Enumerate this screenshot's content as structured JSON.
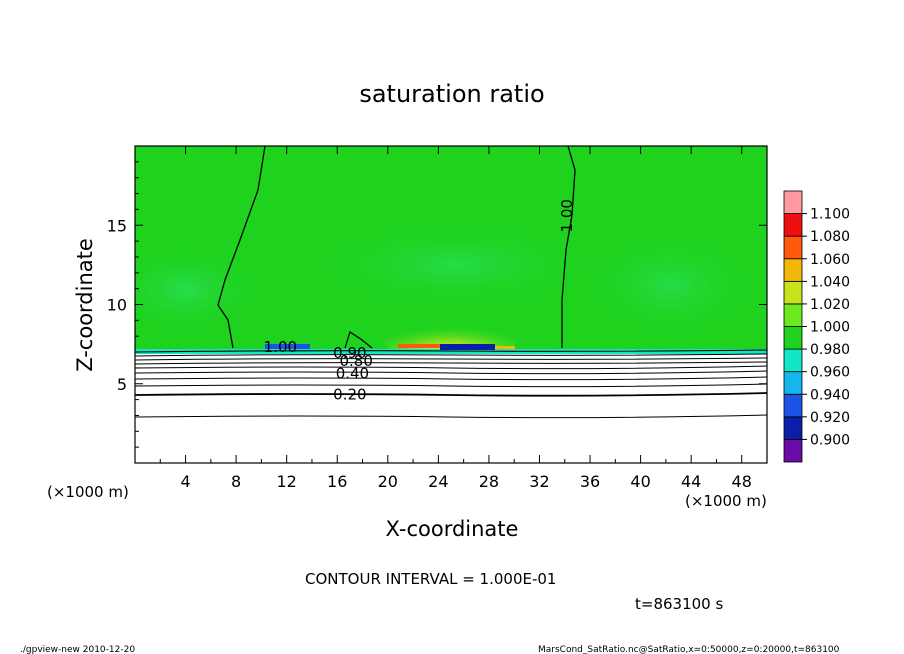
{
  "chart_data": {
    "type": "heatmap",
    "title": "saturation ratio",
    "xlabel": "X-coordinate",
    "ylabel": "Z-coordinate",
    "x_unit": "(×1000 m)",
    "y_unit": "(×1000 m)",
    "xlim": [
      0,
      50
    ],
    "ylim": [
      0,
      20
    ],
    "x_ticks": [
      4,
      8,
      12,
      16,
      20,
      24,
      28,
      32,
      36,
      40,
      44,
      48
    ],
    "x_tick_labels": [
      "4",
      "8",
      "12",
      "16",
      "20",
      "24",
      "28",
      "32",
      "36",
      "40",
      "44",
      "48"
    ],
    "y_ticks": [
      5,
      10,
      15
    ],
    "y_tick_labels": [
      "5",
      "10",
      "15"
    ],
    "colorbar": {
      "levels": [
        0.9,
        0.92,
        0.94,
        0.96,
        0.98,
        1.0,
        1.02,
        1.04,
        1.06,
        1.08,
        1.1
      ],
      "labels": [
        "0.900",
        "0.920",
        "0.940",
        "0.960",
        "0.980",
        "1.000",
        "1.020",
        "1.040",
        "1.060",
        "1.080",
        "1.100"
      ],
      "colors": [
        "#6a0aa8",
        "#0b1ea8",
        "#1c54e6",
        "#15b6ee",
        "#13e6c6",
        "#1ed21e",
        "#6cea1e",
        "#c6e31c",
        "#f2b90a",
        "#ff5a0e",
        "#ee1010",
        "#ff9aa0"
      ]
    },
    "contour_labels": [
      {
        "text": "1.00",
        "x": 34.2,
        "y": 15.6,
        "rotate": -90
      },
      {
        "text": "1.00",
        "x": 11.5,
        "y": 7.3
      },
      {
        "text": "0.90",
        "x": 17.0,
        "y": 6.9
      },
      {
        "text": "0.80",
        "x": 17.5,
        "y": 6.4
      },
      {
        "text": "0.40",
        "x": 17.2,
        "y": 5.6
      },
      {
        "text": "0.20",
        "x": 17.0,
        "y": 4.3
      }
    ],
    "contour_interval": "CONTOUR INTERVAL = 1.000E-01",
    "time_label": "t=863100 s"
  },
  "footer": {
    "left": "./gpview-new  2010-12-20",
    "right": "MarsCond_SatRatio.nc@SatRatio,x=0:50000,z=0:20000,t=863100"
  }
}
